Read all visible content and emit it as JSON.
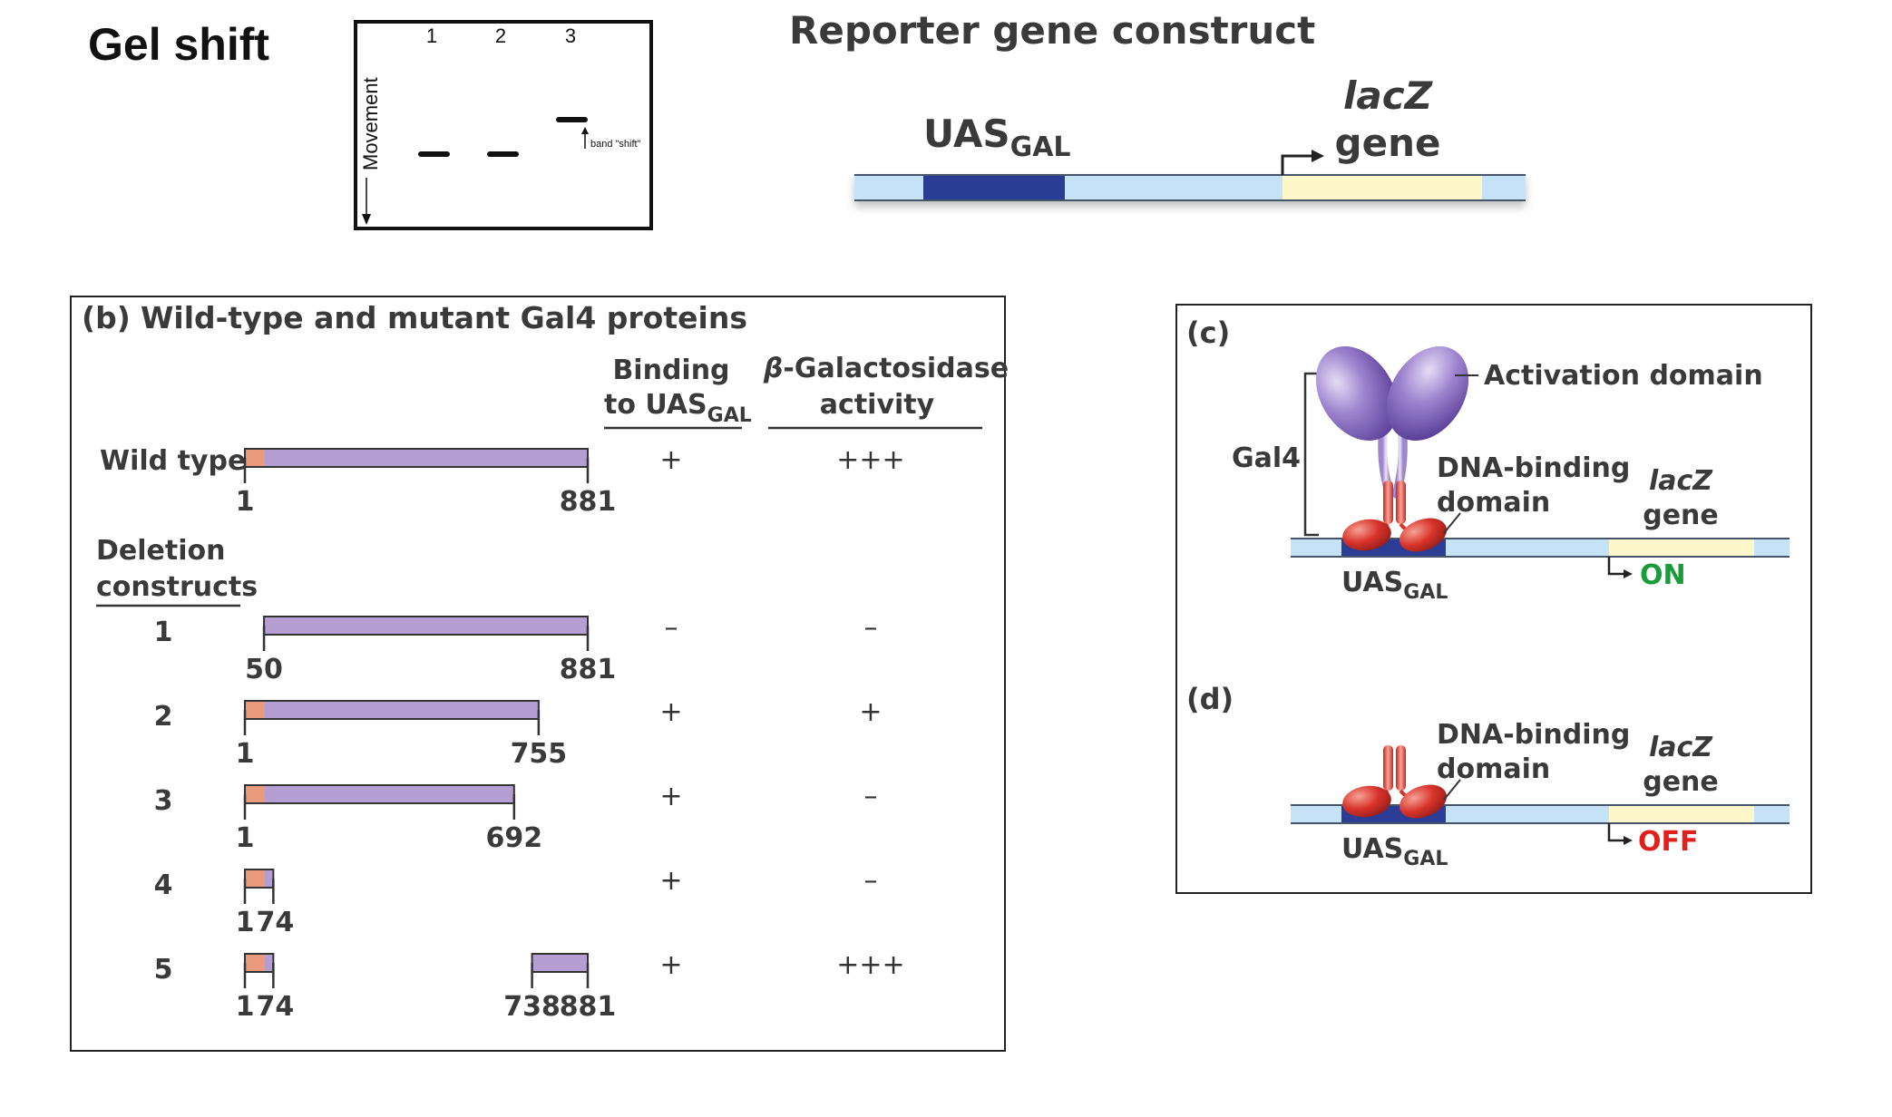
{
  "gel": {
    "title": "Gel shift",
    "lanes": [
      "1",
      "2",
      "3"
    ],
    "axis_label": "Movement",
    "shift_label": "band \"shift\""
  },
  "reporter": {
    "title": "Reporter gene construct",
    "uas": "UAS",
    "uas_sub": "GAL",
    "lacz": "lacZ",
    "gene": "gene"
  },
  "panel_b": {
    "letter": "(b)",
    "title": "Wild-type and mutant Gal4 proteins",
    "col_binding": [
      "Binding",
      "to UAS"
    ],
    "col_binding_sub": "GAL",
    "col_activity_beta": "β",
    "col_activity": [
      "-Galactosidase",
      "activity"
    ],
    "wild_type_label": "Wild type",
    "deletion_label": [
      "Deletion",
      "constructs"
    ],
    "rows": [
      {
        "label": "",
        "segments": [
          {
            "start": 1,
            "end": 881
          }
        ],
        "end_labels": [
          "1",
          "881"
        ],
        "binding": "+",
        "activity": "+++"
      },
      {
        "label": "1",
        "segments": [
          {
            "start": 50,
            "end": 881
          }
        ],
        "end_labels": [
          "50",
          "881"
        ],
        "binding": "–",
        "activity": "–"
      },
      {
        "label": "2",
        "segments": [
          {
            "start": 1,
            "end": 755
          }
        ],
        "end_labels": [
          "1",
          "755"
        ],
        "binding": "+",
        "activity": "+"
      },
      {
        "label": "3",
        "segments": [
          {
            "start": 1,
            "end": 692
          }
        ],
        "end_labels": [
          "1",
          "692"
        ],
        "binding": "+",
        "activity": "–"
      },
      {
        "label": "4",
        "segments": [
          {
            "start": 1,
            "end": 74
          }
        ],
        "end_labels": [
          "1",
          "74"
        ],
        "binding": "+",
        "activity": "–"
      },
      {
        "label": "5",
        "segments": [
          {
            "start": 1,
            "end": 74
          },
          {
            "start": 738,
            "end": 881
          }
        ],
        "end_labels": [
          "1",
          "74",
          "738",
          "881"
        ],
        "binding": "+",
        "activity": "+++"
      }
    ]
  },
  "panel_c": {
    "letter": "(c)",
    "activation_label": "Activation domain",
    "gal4_label": "Gal4",
    "dna_binding": [
      "DNA-binding",
      "domain"
    ],
    "lacz": "lacZ",
    "gene": "gene",
    "uas": "UAS",
    "uas_sub": "GAL",
    "status": "ON"
  },
  "panel_d": {
    "letter": "(d)",
    "dna_binding": [
      "DNA-binding",
      "domain"
    ],
    "lacz": "lacZ",
    "gene": "gene",
    "uas": "UAS",
    "uas_sub": "GAL",
    "status": "OFF"
  },
  "colors": {
    "dna_light": "#c5e2f6",
    "uas_dark": "#2b3d94",
    "lacz_yellow": "#fdf7c9",
    "dna_binding_salmon": "#eb9a7c",
    "activation_purple": "#b59fd2",
    "protein_red": "#d8332a",
    "on_green": "#1a9c3a",
    "off_red": "#e0201d"
  }
}
